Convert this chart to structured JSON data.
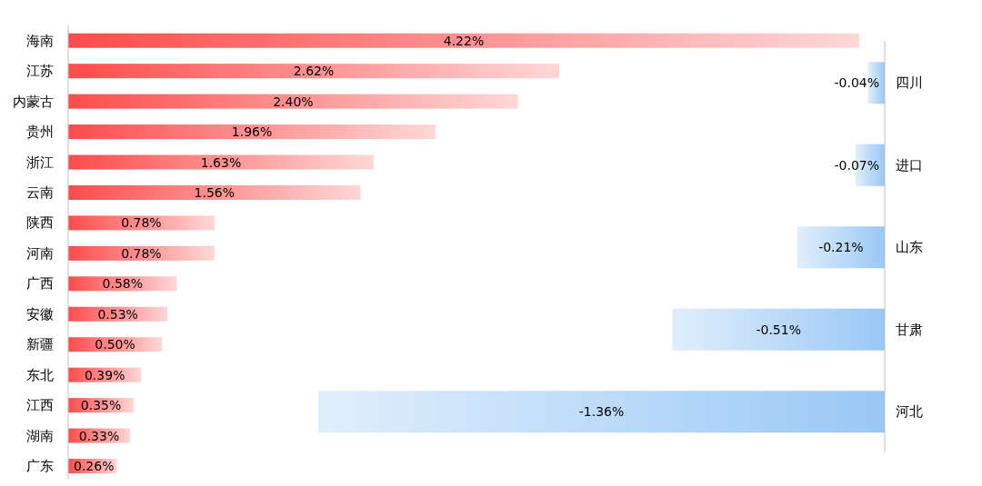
{
  "chart_data": [
    {
      "type": "bar",
      "orientation": "horizontal",
      "color": "#ff4b4b",
      "categories": [
        "海南",
        "江苏",
        "内蒙古",
        "贵州",
        "浙江",
        "云南",
        "陕西",
        "河南",
        "广西",
        "安徽",
        "新疆",
        "东北",
        "江西",
        "湖南",
        "广东"
      ],
      "values": [
        4.22,
        2.62,
        2.4,
        1.96,
        1.63,
        1.56,
        0.78,
        0.78,
        0.58,
        0.53,
        0.5,
        0.39,
        0.35,
        0.33,
        0.26
      ],
      "value_labels": [
        "4.22%",
        "2.62%",
        "2.40%",
        "1.96%",
        "1.63%",
        "1.56%",
        "0.78%",
        "0.78%",
        "0.58%",
        "0.53%",
        "0.50%",
        "0.39%",
        "0.35%",
        "0.33%",
        "0.26%"
      ]
    },
    {
      "type": "bar",
      "orientation": "horizontal",
      "color": "#99c8f5",
      "categories": [
        "四川",
        "进口",
        "山东",
        "甘肃",
        "河北"
      ],
      "values": [
        -0.04,
        -0.07,
        -0.21,
        -0.51,
        -1.36
      ],
      "value_labels": [
        "-0.04%",
        "-0.07%",
        "-0.21%",
        "-0.51%",
        "-1.36%"
      ]
    }
  ]
}
